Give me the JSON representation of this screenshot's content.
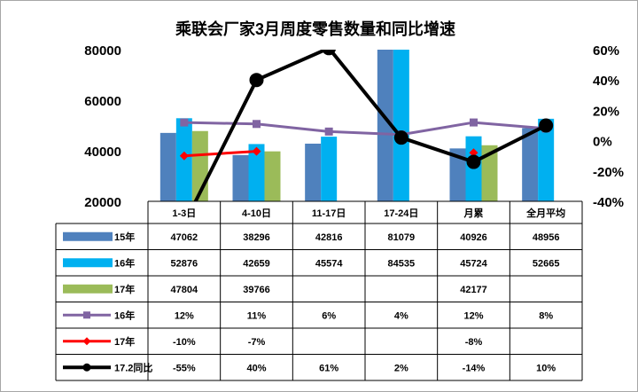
{
  "chart_data": {
    "type": "bar",
    "title": "乘联会厂家3月周度零售数量和同比增速",
    "categories": [
      "1-3日",
      "4-10日",
      "11-17日",
      "17-24日",
      "月累",
      "全月平均"
    ],
    "y_left": {
      "ylim": [
        20000,
        80000
      ],
      "ticks": [
        "20000",
        "40000",
        "60000",
        "80000"
      ]
    },
    "y_right": {
      "ylim": [
        -40,
        60
      ],
      "ticks": [
        "-40%",
        "-20%",
        "0%",
        "20%",
        "40%",
        "60%"
      ]
    },
    "bar_series": [
      {
        "name": "15年",
        "color": "#4f81bd",
        "values": [
          47062,
          38296,
          42816,
          81079,
          40926,
          48956
        ],
        "labels": [
          "47062",
          "38296",
          "42816",
          "81079",
          "40926",
          "48956"
        ]
      },
      {
        "name": "16年",
        "color": "#00b0f0",
        "values": [
          52876,
          42659,
          45574,
          84535,
          45724,
          52665
        ],
        "labels": [
          "52876",
          "42659",
          "45574",
          "84535",
          "45724",
          "52665"
        ]
      },
      {
        "name": "17年",
        "color": "#9bbb59",
        "values": [
          47804,
          39766,
          null,
          null,
          42177,
          null
        ],
        "labels": [
          "47804",
          "39766",
          "",
          "",
          "42177",
          ""
        ]
      }
    ],
    "line_series": [
      {
        "name": "16年",
        "color": "#8064a2",
        "marker": "square",
        "values": [
          12,
          11,
          6,
          4,
          12,
          8
        ],
        "labels": [
          "12%",
          "11%",
          "6%",
          "4%",
          "12%",
          "8%"
        ]
      },
      {
        "name": "17年",
        "color": "#ff0000",
        "marker": "diamond",
        "values": [
          -10,
          -7,
          null,
          null,
          -8,
          null
        ],
        "labels": [
          "-10%",
          "-7%",
          "",
          "",
          "-8%",
          ""
        ]
      },
      {
        "name": "17.2同比",
        "color": "#000000",
        "marker": "circle",
        "values": [
          -55,
          40,
          61,
          2,
          -14,
          10
        ],
        "labels": [
          "-55%",
          "40%",
          "61%",
          "2%",
          "-14%",
          "10%"
        ]
      }
    ]
  }
}
